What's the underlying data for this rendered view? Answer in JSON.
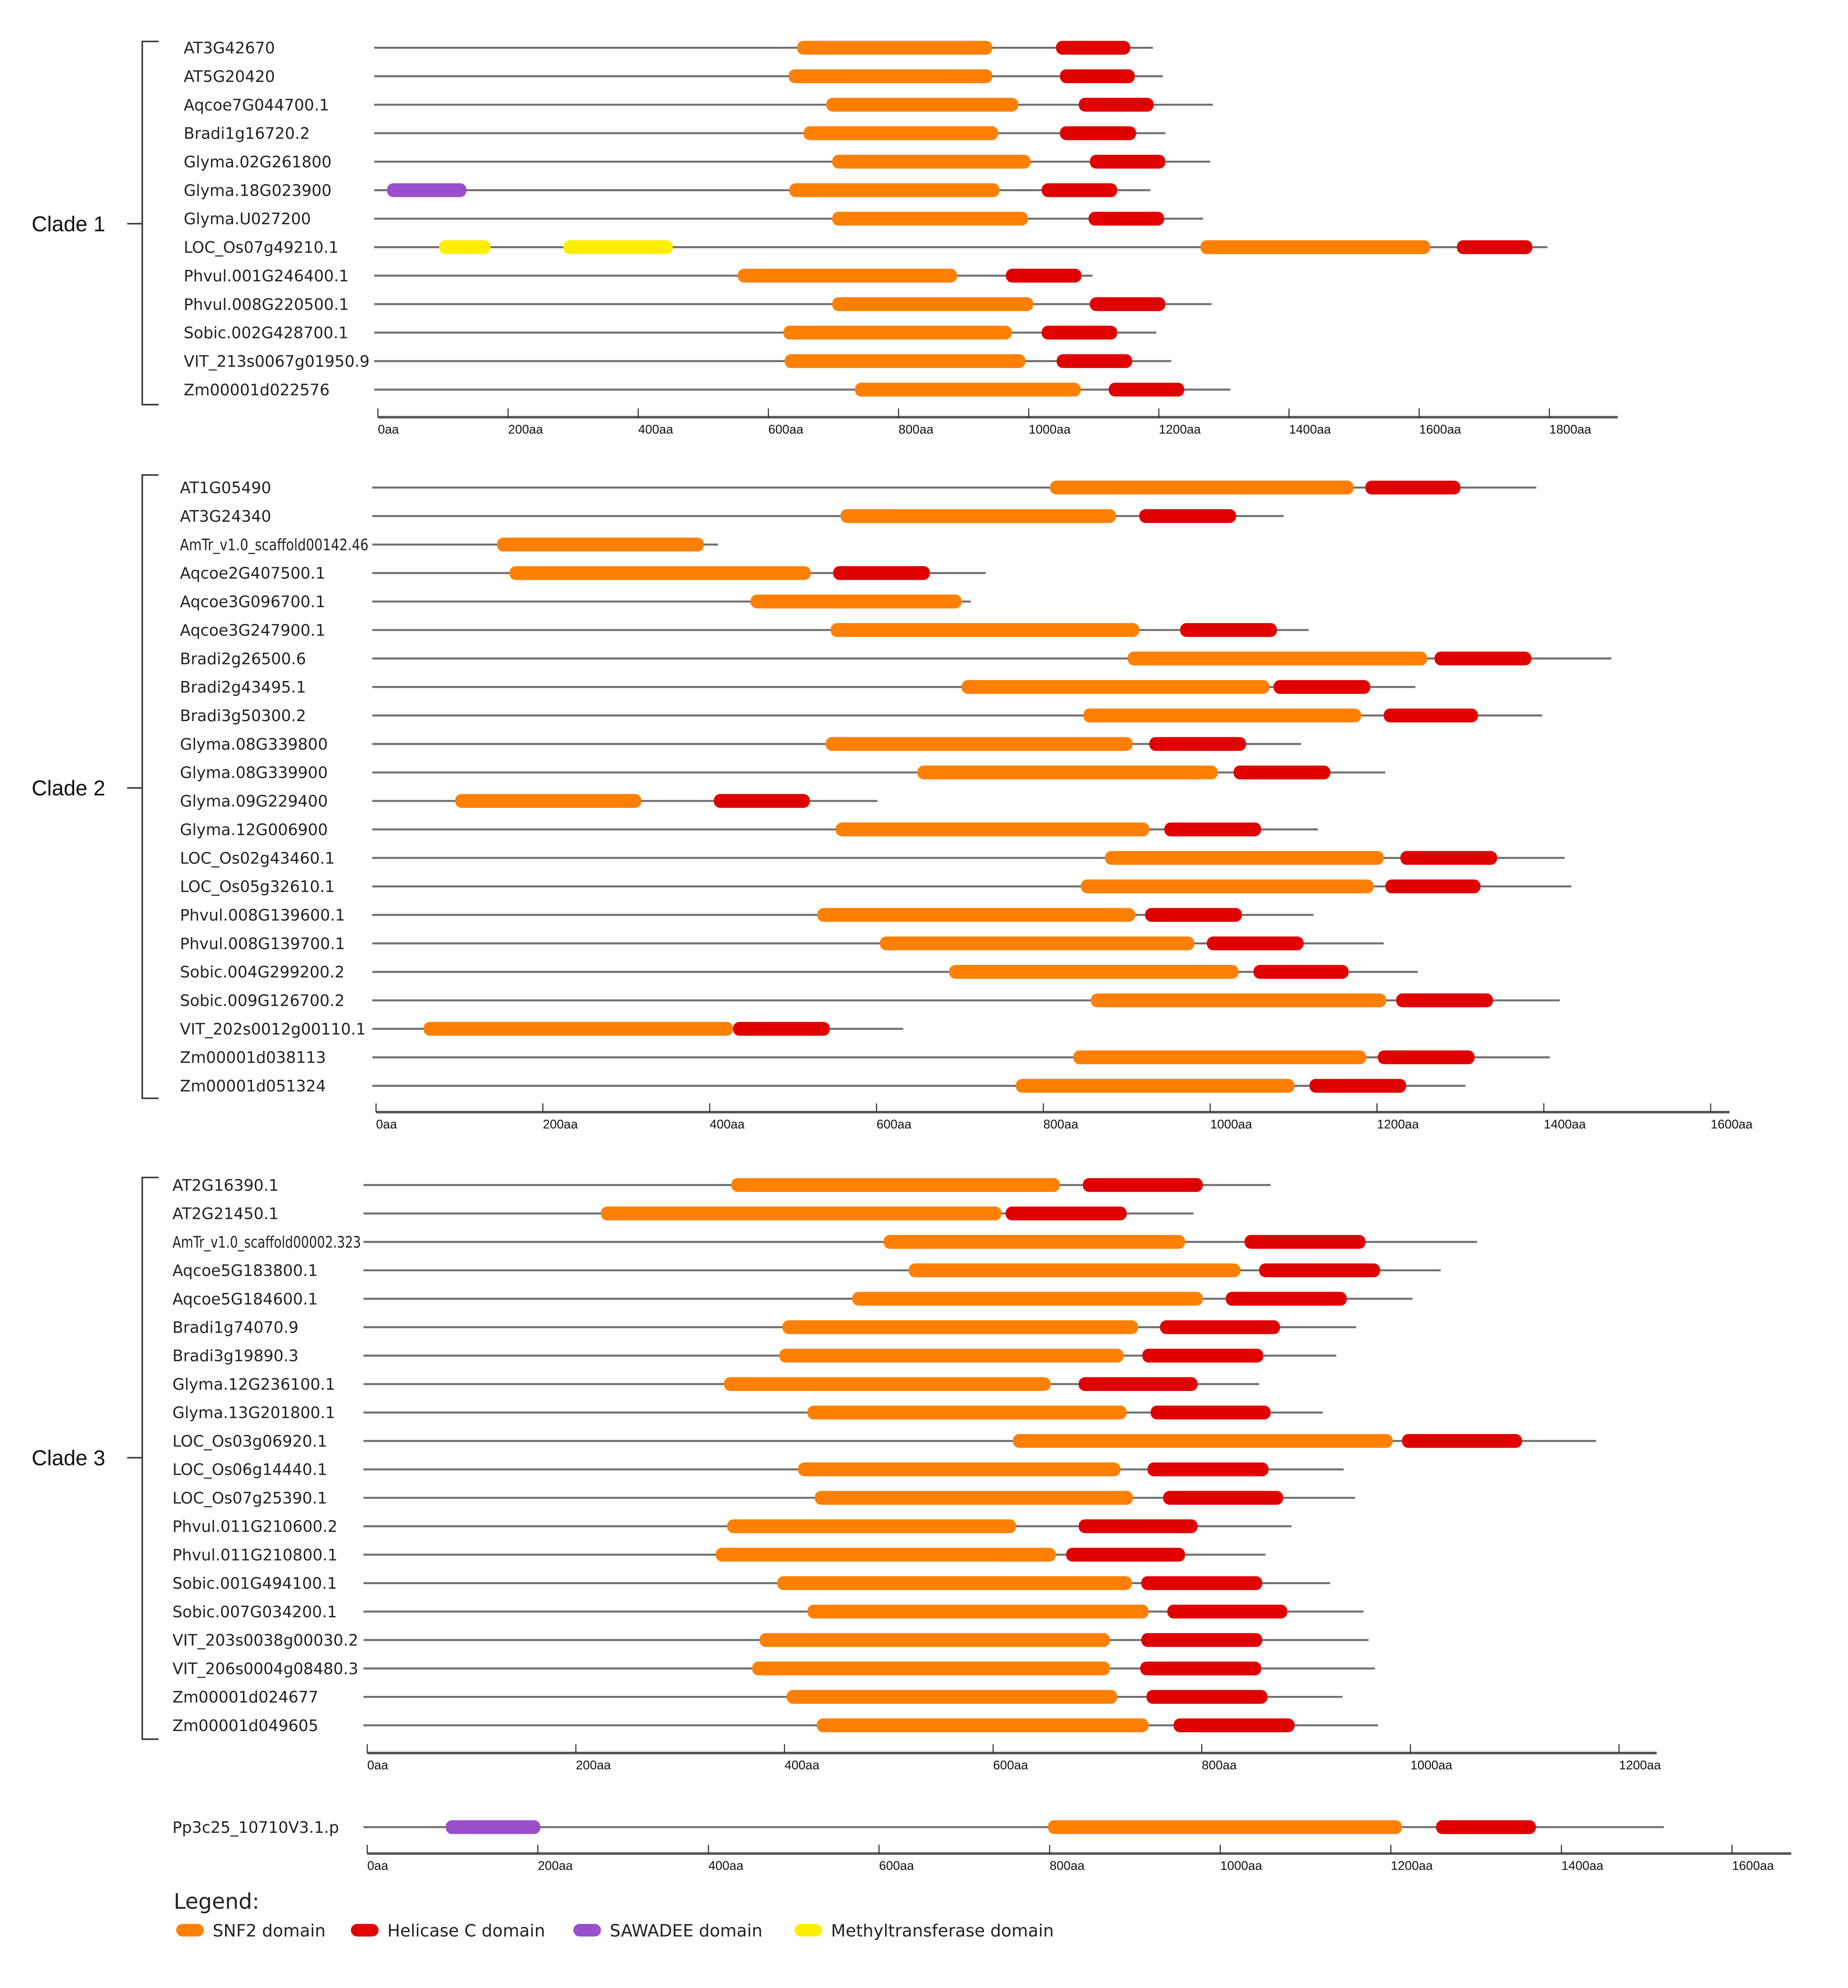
{
  "domain_colors": {
    "SNF2": "#ff8000",
    "HelC": "#e00000",
    "SAW": "#9b4fcc",
    "MT": "#ffee00"
  },
  "axis_unit": "aa",
  "clades": [
    {
      "label": "Clade 1",
      "ticks": [
        "0aa",
        "200aa",
        "400aa",
        "600aa",
        "800aa",
        "1000aa",
        "1200aa",
        "1400aa",
        "1600aa",
        "1800aa"
      ],
      "genes": [
        {
          "name": "AT3G42670",
          "length": 1191,
          "domains": [
            [
              "SNF2",
              644,
              944
            ],
            [
              "HelC",
              1042,
              1156
            ]
          ]
        },
        {
          "name": "AT5G20420",
          "length": 1206,
          "domains": [
            [
              "SNF2",
              631,
              944
            ],
            [
              "HelC",
              1048,
              1163
            ]
          ]
        },
        {
          "name": "Aqcoe7G044700.1",
          "length": 1283,
          "domains": [
            [
              "SNF2",
              689,
              984
            ],
            [
              "HelC",
              1077,
              1192
            ]
          ]
        },
        {
          "name": "Bradi1g16720.2",
          "length": 1210,
          "domains": [
            [
              "SNF2",
              654,
              953
            ],
            [
              "HelC",
              1048,
              1165
            ]
          ]
        },
        {
          "name": "Glyma.02G261800",
          "length": 1279,
          "domains": [
            [
              "SNF2",
              698,
              1003
            ],
            [
              "HelC",
              1094,
              1210
            ]
          ]
        },
        {
          "name": "Glyma.18G023900",
          "length": 1187,
          "domains": [
            [
              "SAW",
              14,
              136
            ],
            [
              "SNF2",
              632,
              955
            ],
            [
              "HelC",
              1020,
              1136
            ]
          ]
        },
        {
          "name": "Glyma.U027200",
          "length": 1268,
          "domains": [
            [
              "SNF2",
              698,
              999
            ],
            [
              "HelC",
              1092,
              1208
            ]
          ]
        },
        {
          "name": "LOC_Os07g49210.1",
          "length": 1797,
          "domains": [
            [
              "MT",
              94,
              173
            ],
            [
              "MT",
              285,
              453
            ],
            [
              "SNF2",
              1264,
              1617
            ],
            [
              "HelC",
              1658,
              1774
            ]
          ]
        },
        {
          "name": "Phvul.001G246400.1",
          "length": 1098,
          "domains": [
            [
              "SNF2",
              553,
              890
            ],
            [
              "HelC",
              965,
              1081
            ]
          ]
        },
        {
          "name": "Phvul.008G220500.1",
          "length": 1281,
          "domains": [
            [
              "SNF2",
              698,
              1007
            ],
            [
              "HelC",
              1094,
              1210
            ]
          ]
        },
        {
          "name": "Sobic.002G428700.1",
          "length": 1196,
          "domains": [
            [
              "SNF2",
              623,
              974
            ],
            [
              "HelC",
              1020,
              1136
            ]
          ]
        },
        {
          "name": "VIT_213s0067g01950.9",
          "length": 1219,
          "domains": [
            [
              "SNF2",
              625,
              995
            ],
            [
              "HelC",
              1043,
              1159
            ]
          ]
        },
        {
          "name": "Zm00001d022576",
          "length": 1310,
          "domains": [
            [
              "SNF2",
              733,
              1080
            ],
            [
              "HelC",
              1123,
              1239
            ]
          ]
        }
      ]
    },
    {
      "label": "Clade 2",
      "ticks": [
        "0aa",
        "200aa",
        "400aa",
        "600aa",
        "800aa",
        "1000aa",
        "1200aa",
        "1400aa",
        "1600aa"
      ],
      "genes": [
        {
          "name": "AT1G05490",
          "length": 1391,
          "domains": [
            [
              "SNF2",
              808,
              1172
            ],
            [
              "HelC",
              1186,
              1300
            ]
          ]
        },
        {
          "name": "AT3G24340",
          "length": 1088,
          "domains": [
            [
              "SNF2",
              557,
              887
            ],
            [
              "HelC",
              915,
              1031
            ]
          ]
        },
        {
          "name": "AmTr_v1.0_scaffold00142.46",
          "length": 410,
          "domains": [
            [
              "SNF2",
              145,
              393
            ]
          ]
        },
        {
          "name": "Aqcoe2G407500.1",
          "length": 731,
          "domains": [
            [
              "SNF2",
              160,
              521
            ],
            [
              "HelC",
              548,
              664
            ]
          ]
        },
        {
          "name": "Aqcoe3G096700.1",
          "length": 713,
          "domains": [
            [
              "SNF2",
              449,
              702
            ]
          ]
        },
        {
          "name": "Aqcoe3G247900.1",
          "length": 1118,
          "domains": [
            [
              "SNF2",
              545,
              915
            ],
            [
              "HelC",
              964,
              1080
            ]
          ]
        },
        {
          "name": "Bradi2g26500.6",
          "length": 1481,
          "domains": [
            [
              "SNF2",
              901,
              1260
            ],
            [
              "HelC",
              1269,
              1385
            ]
          ]
        },
        {
          "name": "Bradi2g43495.1",
          "length": 1246,
          "domains": [
            [
              "SNF2",
              702,
              1071
            ],
            [
              "HelC",
              1076,
              1192
            ]
          ]
        },
        {
          "name": "Bradi3g50300.2",
          "length": 1398,
          "domains": [
            [
              "SNF2",
              848,
              1181
            ],
            [
              "HelC",
              1208,
              1321
            ]
          ]
        },
        {
          "name": "Glyma.08G339800",
          "length": 1109,
          "domains": [
            [
              "SNF2",
              539,
              907
            ],
            [
              "HelC",
              927,
              1043
            ]
          ]
        },
        {
          "name": "Glyma.08G339900",
          "length": 1210,
          "domains": [
            [
              "SNF2",
              649,
              1009
            ],
            [
              "HelC",
              1028,
              1144
            ]
          ]
        },
        {
          "name": "Glyma.09G229400",
          "length": 601,
          "domains": [
            [
              "SNF2",
              95,
              318
            ],
            [
              "HelC",
              405,
              520
            ]
          ]
        },
        {
          "name": "Glyma.12G006900",
          "length": 1129,
          "domains": [
            [
              "SNF2",
              551,
              927
            ],
            [
              "HelC",
              945,
              1061
            ]
          ]
        },
        {
          "name": "LOC_Os02g43460.1",
          "length": 1425,
          "domains": [
            [
              "SNF2",
              874,
              1208
            ],
            [
              "HelC",
              1228,
              1344
            ]
          ]
        },
        {
          "name": "LOC_Os05g32610.1",
          "length": 1433,
          "domains": [
            [
              "SNF2",
              845,
              1196
            ],
            [
              "HelC",
              1210,
              1324
            ]
          ]
        },
        {
          "name": "Phvul.008G139600.1",
          "length": 1124,
          "domains": [
            [
              "SNF2",
              529,
              910
            ],
            [
              "HelC",
              922,
              1038
            ]
          ]
        },
        {
          "name": "Phvul.008G139700.1",
          "length": 1208,
          "domains": [
            [
              "SNF2",
              604,
              981
            ],
            [
              "HelC",
              996,
              1112
            ]
          ]
        },
        {
          "name": "Sobic.004G299200.2",
          "length": 1249,
          "domains": [
            [
              "SNF2",
              687,
              1034
            ],
            [
              "HelC",
              1052,
              1166
            ]
          ]
        },
        {
          "name": "Sobic.009G126700.2",
          "length": 1419,
          "domains": [
            [
              "SNF2",
              857,
              1211
            ],
            [
              "HelC",
              1223,
              1339
            ]
          ]
        },
        {
          "name": "VIT_202s0012g00110.1",
          "length": 632,
          "domains": [
            [
              "SNF2",
              57,
              428
            ],
            [
              "HelC",
              428,
              544
            ]
          ]
        },
        {
          "name": "Zm00001d038113",
          "length": 1407,
          "domains": [
            [
              "SNF2",
              836,
              1187
            ],
            [
              "HelC",
              1201,
              1317
            ]
          ]
        },
        {
          "name": "Zm00001d051324",
          "length": 1306,
          "domains": [
            [
              "SNF2",
              767,
              1101
            ],
            [
              "HelC",
              1119,
              1235
            ]
          ]
        }
      ]
    },
    {
      "label": "Clade 3",
      "ticks": [
        "0aa",
        "200aa",
        "400aa",
        "600aa",
        "800aa",
        "1000aa",
        "1200aa"
      ],
      "genes": [
        {
          "name": "AT2G16390.1",
          "length": 866,
          "domains": [
            [
              "SNF2",
              349,
              664
            ],
            [
              "HelC",
              686,
              801
            ]
          ]
        },
        {
          "name": "AT2G21450.1",
          "length": 792,
          "domains": [
            [
              "SNF2",
              224,
              608
            ],
            [
              "HelC",
              612,
              728
            ]
          ]
        },
        {
          "name": "AmTr_v1.0_scaffold00002.323",
          "length": 1064,
          "domains": [
            [
              "SNF2",
              495,
              784
            ],
            [
              "HelC",
              841,
              957
            ]
          ]
        },
        {
          "name": "Aqcoe5G183800.1",
          "length": 1029,
          "domains": [
            [
              "SNF2",
              519,
              837
            ],
            [
              "HelC",
              855,
              971
            ]
          ]
        },
        {
          "name": "Aqcoe5G184600.1",
          "length": 1002,
          "domains": [
            [
              "SNF2",
              465,
              801
            ],
            [
              "HelC",
              823,
              939
            ]
          ]
        },
        {
          "name": "Bradi1g74070.9",
          "length": 948,
          "domains": [
            [
              "SNF2",
              398,
              739
            ],
            [
              "HelC",
              760,
              875
            ]
          ]
        },
        {
          "name": "Bradi3g19890.3",
          "length": 929,
          "domains": [
            [
              "SNF2",
              395,
              725
            ],
            [
              "HelC",
              743,
              859
            ]
          ]
        },
        {
          "name": "Glyma.12G236100.1",
          "length": 855,
          "domains": [
            [
              "SNF2",
              342,
              655
            ],
            [
              "HelC",
              682,
              796
            ]
          ]
        },
        {
          "name": "Glyma.13G201800.1",
          "length": 916,
          "domains": [
            [
              "SNF2",
              422,
              728
            ],
            [
              "HelC",
              751,
              866
            ]
          ]
        },
        {
          "name": "LOC_Os03g06920.1",
          "length": 1178,
          "domains": [
            [
              "SNF2",
              619,
              983
            ],
            [
              "HelC",
              992,
              1107
            ]
          ]
        },
        {
          "name": "LOC_Os06g14440.1",
          "length": 936,
          "domains": [
            [
              "SNF2",
              413,
              722
            ],
            [
              "HelC",
              748,
              864
            ]
          ]
        },
        {
          "name": "LOC_Os07g25390.1",
          "length": 947,
          "domains": [
            [
              "SNF2",
              429,
              734
            ],
            [
              "HelC",
              763,
              878
            ]
          ]
        },
        {
          "name": "Phvul.011G210600.2",
          "length": 886,
          "domains": [
            [
              "SNF2",
              345,
              622
            ],
            [
              "HelC",
              682,
              796
            ]
          ]
        },
        {
          "name": "Phvul.011G210800.1",
          "length": 861,
          "domains": [
            [
              "SNF2",
              334,
              660
            ],
            [
              "HelC",
              670,
              784
            ]
          ]
        },
        {
          "name": "Sobic.001G494100.1",
          "length": 923,
          "domains": [
            [
              "SNF2",
              393,
              733
            ],
            [
              "HelC",
              742,
              858
            ]
          ]
        },
        {
          "name": "Sobic.007G034200.1",
          "length": 955,
          "domains": [
            [
              "SNF2",
              422,
              749
            ],
            [
              "HelC",
              767,
              882
            ]
          ]
        },
        {
          "name": "VIT_203s0038g00030.2",
          "length": 960,
          "domains": [
            [
              "SNF2",
              376,
              712
            ],
            [
              "HelC",
              742,
              858
            ]
          ]
        },
        {
          "name": "VIT_206s0004g08480.3",
          "length": 966,
          "domains": [
            [
              "SNF2",
              369,
              712
            ],
            [
              "HelC",
              741,
              857
            ]
          ]
        },
        {
          "name": "Zm00001d024677",
          "length": 935,
          "domains": [
            [
              "SNF2",
              402,
              719
            ],
            [
              "HelC",
              747,
              863
            ]
          ]
        },
        {
          "name": "Zm00001d049605",
          "length": 969,
          "domains": [
            [
              "SNF2",
              431,
              749
            ],
            [
              "HelC",
              773,
              889
            ]
          ]
        }
      ]
    },
    {
      "label": "",
      "ticks": [
        "0aa",
        "200aa",
        "400aa",
        "600aa",
        "800aa",
        "1000aa",
        "1200aa",
        "1400aa",
        "1600aa"
      ],
      "genes": [
        {
          "name": "Pp3c25_10710V3.1.p",
          "length": 1520,
          "domains": [
            [
              "SAW",
              92,
              203
            ],
            [
              "SNF2",
              798,
              1213
            ],
            [
              "HelC",
              1253,
              1370
            ]
          ]
        }
      ]
    }
  ],
  "legend": {
    "title": "Legend:",
    "items": [
      {
        "type": "SNF2",
        "label": "SNF2 domain"
      },
      {
        "type": "HelC",
        "label": "Helicase C domain"
      },
      {
        "type": "SAW",
        "label": "SAWADEE domain"
      },
      {
        "type": "MT",
        "label": "Methyltransferase domain"
      }
    ]
  }
}
